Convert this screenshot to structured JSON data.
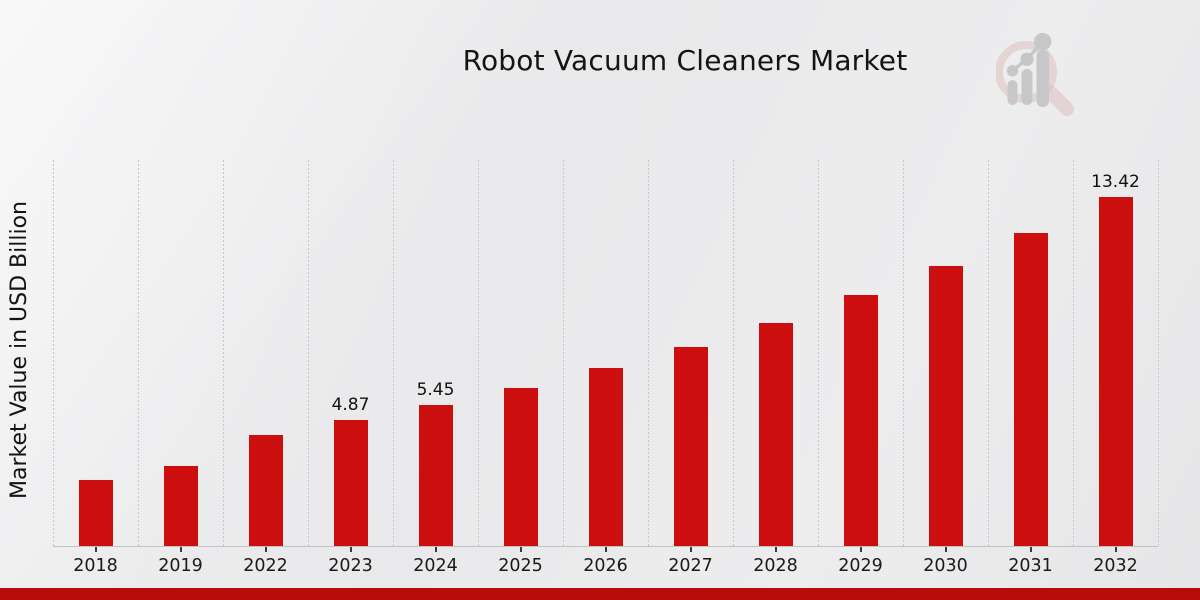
{
  "page": {
    "title": "Robot Vacuum Cleaners Market",
    "ylabel": "Market Value in USD Billion"
  },
  "logo": {
    "name": "magnifying-glass-growth-chart-watermark"
  },
  "colors": {
    "bar": "#cc0e0e",
    "bottom_band": "#b70d0a",
    "grid": "#c6c6c8",
    "axis": "#c2c2c4",
    "text": "#141414",
    "logo_ring": "#ddbfbf",
    "logo_gray": "#c6c6c8"
  },
  "chart_data": {
    "type": "bar",
    "title": "Robot Vacuum Cleaners Market",
    "xlabel": "",
    "ylabel": "Market Value in USD Billion",
    "categories": [
      "2018",
      "2019",
      "2022",
      "2023",
      "2024",
      "2025",
      "2026",
      "2027",
      "2028",
      "2029",
      "2030",
      "2031",
      "2032"
    ],
    "values": [
      2.57,
      3.11,
      4.3,
      4.87,
      5.45,
      6.1,
      6.85,
      7.67,
      8.6,
      9.65,
      10.78,
      12.04,
      13.42
    ],
    "value_labels": [
      "",
      "",
      "",
      "4.87",
      "5.45",
      "",
      "",
      "",
      "",
      "",
      "",
      "",
      "13.42"
    ],
    "ylim": [
      0,
      14.8
    ],
    "grid": "vertical dotted category separators",
    "legend": "none",
    "bar_color": "#cc0e0e"
  }
}
